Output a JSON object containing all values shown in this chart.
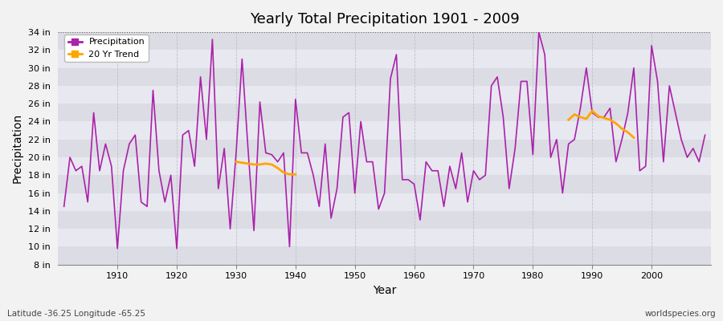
{
  "title": "Yearly Total Precipitation 1901 - 2009",
  "xlabel": "Year",
  "ylabel": "Precipitation",
  "lat_lon_label": "Latitude -36.25 Longitude -65.25",
  "watermark": "worldspecies.org",
  "bg_color": "#f0f0f0",
  "plot_bg_color": "#e8e8ee",
  "precip_color": "#aa22aa",
  "trend_color": "#ffa500",
  "ylim": [
    8,
    34
  ],
  "ytick_step": 2,
  "years": [
    1901,
    1902,
    1903,
    1904,
    1905,
    1906,
    1907,
    1908,
    1909,
    1910,
    1911,
    1912,
    1913,
    1914,
    1915,
    1916,
    1917,
    1918,
    1919,
    1920,
    1921,
    1922,
    1923,
    1924,
    1925,
    1926,
    1927,
    1928,
    1929,
    1930,
    1931,
    1932,
    1933,
    1934,
    1935,
    1936,
    1937,
    1938,
    1939,
    1940,
    1941,
    1942,
    1943,
    1944,
    1945,
    1946,
    1947,
    1948,
    1949,
    1950,
    1951,
    1952,
    1953,
    1954,
    1955,
    1956,
    1957,
    1958,
    1959,
    1960,
    1961,
    1962,
    1963,
    1964,
    1965,
    1966,
    1967,
    1968,
    1969,
    1970,
    1971,
    1972,
    1973,
    1974,
    1975,
    1976,
    1977,
    1978,
    1979,
    1980,
    1981,
    1982,
    1983,
    1984,
    1985,
    1986,
    1987,
    1988,
    1989,
    1990,
    1991,
    1992,
    1993,
    1994,
    1995,
    1996,
    1997,
    1998,
    1999,
    2000,
    2001,
    2002,
    2003,
    2004,
    2005,
    2006,
    2007,
    2008,
    2009
  ],
  "precip": [
    14.5,
    20.0,
    18.5,
    19.0,
    15.0,
    25.0,
    18.5,
    21.5,
    19.0,
    9.8,
    18.5,
    21.5,
    22.5,
    15.0,
    14.5,
    27.5,
    18.5,
    15.0,
    18.0,
    9.8,
    22.5,
    23.0,
    19.0,
    29.0,
    22.0,
    33.2,
    16.5,
    21.0,
    12.0,
    20.5,
    31.0,
    21.0,
    11.8,
    26.2,
    20.5,
    20.3,
    19.5,
    20.5,
    10.0,
    26.5,
    20.5,
    20.5,
    18.0,
    14.5,
    21.5,
    13.2,
    16.5,
    24.5,
    25.0,
    16.0,
    24.0,
    19.5,
    19.5,
    14.2,
    16.0,
    28.8,
    31.5,
    17.5,
    17.5,
    17.0,
    13.0,
    19.5,
    18.5,
    18.5,
    14.5,
    19.0,
    16.5,
    20.5,
    15.0,
    18.5,
    17.5,
    18.0,
    28.0,
    29.0,
    24.5,
    16.5,
    21.0,
    28.5,
    28.5,
    20.3,
    34.0,
    31.5,
    20.0,
    22.0,
    16.0,
    21.5,
    22.0,
    25.5,
    30.0,
    25.0,
    24.5,
    24.5,
    25.5,
    19.5,
    22.0,
    25.0,
    30.0,
    18.5,
    19.0,
    32.5,
    28.5,
    19.5,
    28.0,
    25.0,
    22.0,
    20.0,
    21.0,
    19.5,
    22.5
  ],
  "trend_seg1_years": [
    1930,
    1931,
    1932,
    1933,
    1934,
    1935,
    1936,
    1937,
    1938,
    1939,
    1940
  ],
  "trend_seg1_values": [
    19.5,
    19.4,
    19.3,
    19.2,
    19.2,
    19.3,
    19.2,
    18.8,
    18.3,
    18.1,
    18.1
  ],
  "trend_seg2_years": [
    1986,
    1987,
    1988,
    1989,
    1990,
    1991,
    1992,
    1993,
    1994,
    1995,
    1996,
    1997
  ],
  "trend_seg2_values": [
    24.2,
    24.8,
    24.5,
    24.3,
    25.2,
    24.6,
    24.4,
    24.2,
    23.8,
    23.2,
    22.8,
    22.2
  ],
  "band_colors": [
    "#dcdce4",
    "#e8e8f0"
  ],
  "xticks": [
    1910,
    1920,
    1930,
    1940,
    1950,
    1960,
    1970,
    1980,
    1990,
    2000
  ],
  "xlim": [
    1900,
    2010
  ]
}
